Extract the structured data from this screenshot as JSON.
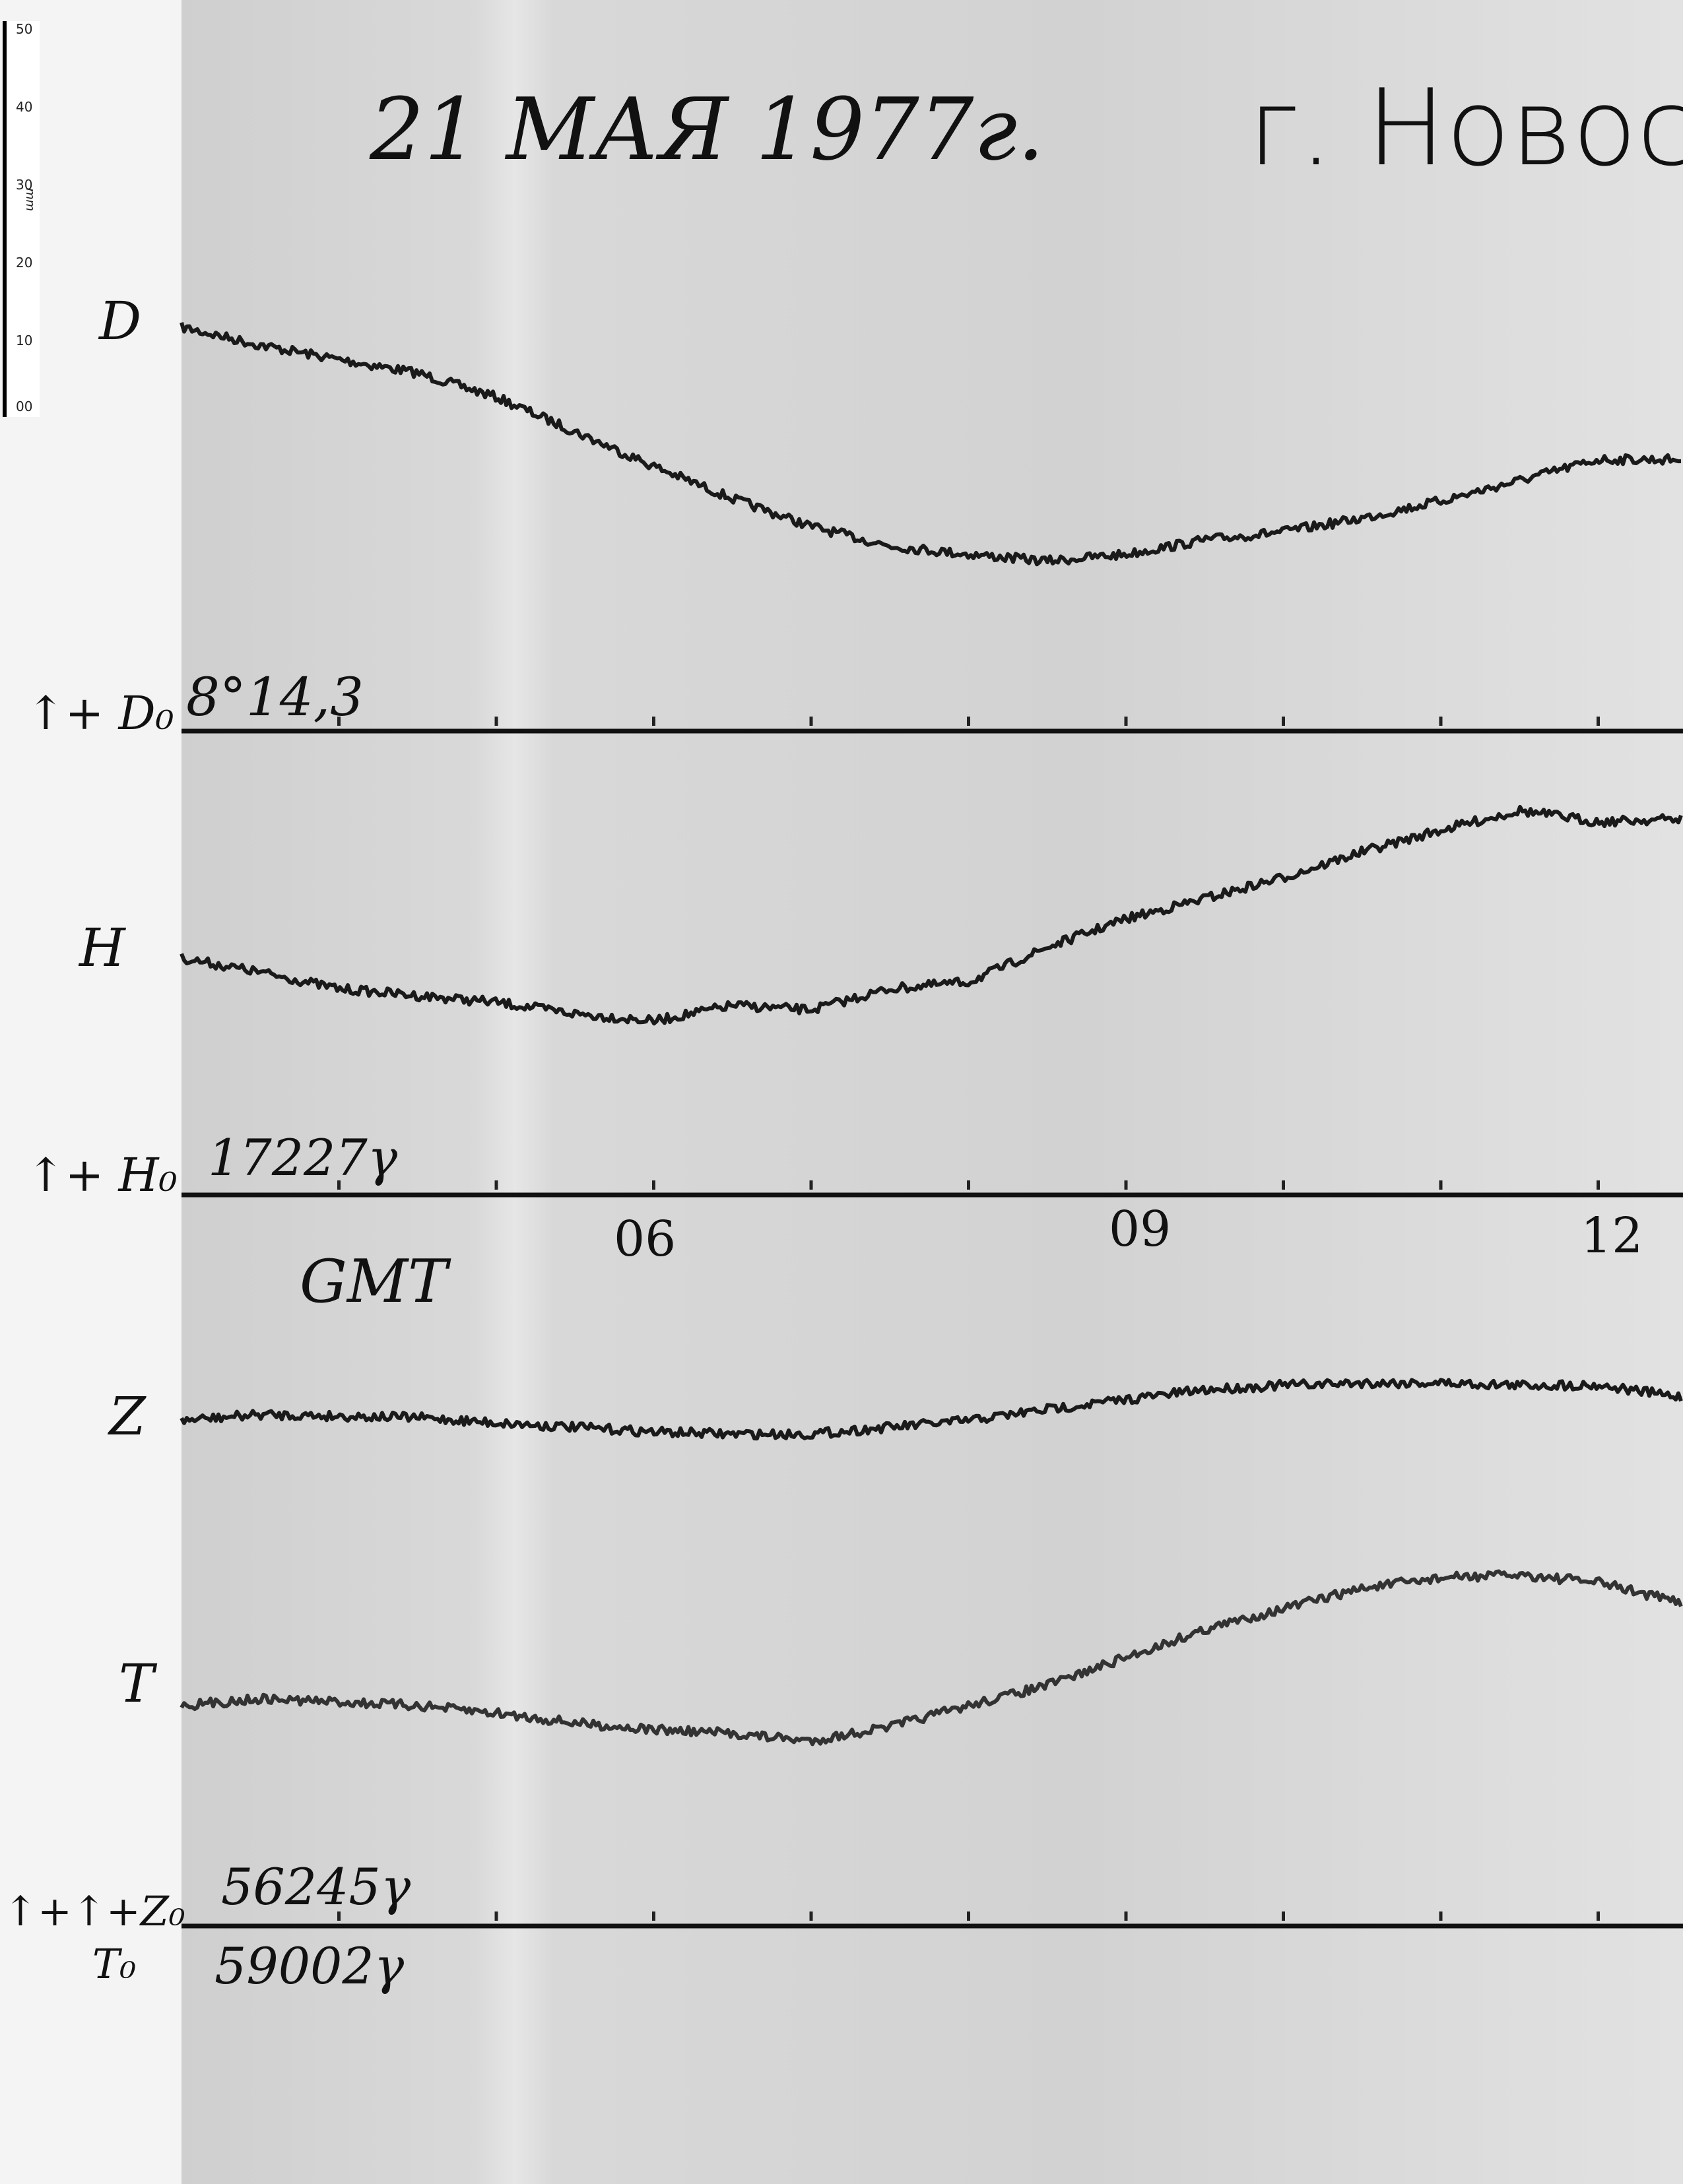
{
  "header": {
    "date": "21 МАЯ 1977г.",
    "place": "г. Новоси"
  },
  "ruler": {
    "unit": "mm",
    "ticks": [
      "50",
      "40",
      "30",
      "20",
      "10",
      "00"
    ]
  },
  "labels": {
    "D": "D",
    "D0": "↑+ D₀",
    "D0_value": "8°14,3",
    "H": "H",
    "H0": "↑+ H₀",
    "H0_value": "17227γ",
    "Z": "Z",
    "T": "T",
    "Z0": "↑+↑+Z₀",
    "T0": "T₀",
    "Z0_value": "56245γ",
    "T0_value": "59002γ",
    "time_zone": "GMT"
  },
  "chart_data": {
    "type": "line",
    "title": "21 МАЯ 1977г.",
    "xlabel": "GMT",
    "x_ticks": [
      "06",
      "09",
      "12"
    ],
    "x_range_hours": [
      3,
      12.5
    ],
    "y_unit": "mm deflection above baseline (approx.)",
    "x": [
      3,
      3.5,
      4,
      4.5,
      5,
      5.5,
      6,
      6.5,
      7,
      7.5,
      8,
      8.5,
      9,
      9.5,
      10,
      10.5,
      11,
      11.5,
      12,
      12.5
    ],
    "series": [
      {
        "name": "D",
        "baseline": "8°14,3",
        "values": [
          53.7,
          51.3,
          49.4,
          47.6,
          44.4,
          39.8,
          35.2,
          30.9,
          27.2,
          24.6,
          23.5,
          22.6,
          23.5,
          25.4,
          26.5,
          28.3,
          30.6,
          33.3,
          36.1,
          36.1
        ]
      },
      {
        "name": "H",
        "baseline": "17227γ",
        "values": [
          31.5,
          29.6,
          27.4,
          26.5,
          25.6,
          24.1,
          23.1,
          25.2,
          24.6,
          27.4,
          28.3,
          32.9,
          36.7,
          39.4,
          42.2,
          45.6,
          48.5,
          51.1,
          49.6,
          50.0
        ]
      },
      {
        "name": "Z",
        "baseline": "56245γ",
        "values": [
          67.2,
          68.0,
          67.8,
          67.6,
          66.9,
          66.3,
          65.7,
          65.4,
          65.4,
          66.3,
          67.2,
          68.7,
          70.0,
          71.3,
          71.9,
          72.2,
          72.2,
          71.9,
          71.9,
          70.4
        ]
      },
      {
        "name": "T",
        "baseline": "59002γ",
        "values": [
          29.3,
          30.2,
          29.8,
          29.3,
          28.3,
          27.0,
          26.1,
          25.6,
          24.6,
          26.5,
          29.3,
          32.0,
          35.7,
          39.4,
          42.2,
          44.9,
          46.3,
          46.7,
          45.7,
          43.1
        ]
      }
    ],
    "colors": {
      "trace": "#1a1a1a",
      "paper": "#d6d6d6"
    }
  }
}
